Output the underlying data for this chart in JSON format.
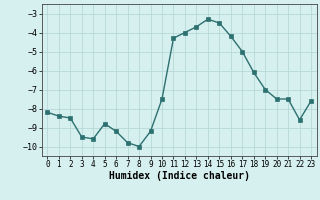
{
  "x": [
    0,
    1,
    2,
    3,
    4,
    5,
    6,
    7,
    8,
    9,
    10,
    11,
    12,
    13,
    14,
    15,
    16,
    17,
    18,
    19,
    20,
    21,
    22,
    23
  ],
  "y": [
    -8.2,
    -8.4,
    -8.5,
    -9.5,
    -9.6,
    -8.8,
    -9.2,
    -9.8,
    -10.0,
    -9.2,
    -7.5,
    -4.3,
    -4.0,
    -3.7,
    -3.3,
    -3.5,
    -4.2,
    -5.0,
    -6.1,
    -7.0,
    -7.5,
    -7.5,
    -8.6,
    -7.6
  ],
  "line_color": "#2d7070",
  "marker": "s",
  "marker_size": 2.5,
  "bg_color": "#d6efef",
  "grid_color": "#b8d8d8",
  "xlabel": "Humidex (Indice chaleur)",
  "xlabel_fontsize": 7,
  "xlim": [
    -0.5,
    23.5
  ],
  "ylim": [
    -10.5,
    -2.5
  ],
  "yticks": [
    -10,
    -9,
    -8,
    -7,
    -6,
    -5,
    -4,
    -3
  ],
  "xtick_labels": [
    "0",
    "1",
    "2",
    "3",
    "4",
    "5",
    "6",
    "7",
    "8",
    "9",
    "10",
    "11",
    "12",
    "13",
    "14",
    "15",
    "16",
    "17",
    "18",
    "19",
    "20",
    "21",
    "22",
    "23"
  ],
  "tick_fontsize": 5.5,
  "ytick_fontsize": 6.0
}
